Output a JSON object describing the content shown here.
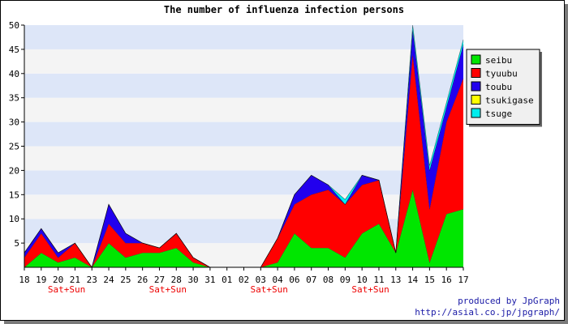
{
  "chart_data": {
    "type": "area",
    "stacked": true,
    "title": "The number of influenza infection persons",
    "xlabel": "",
    "ylabel": "",
    "ylim": [
      0,
      50
    ],
    "yticks": [
      5,
      10,
      15,
      20,
      25,
      30,
      35,
      40,
      45,
      50
    ],
    "grid": true,
    "legend_position": "right",
    "categories": [
      "18",
      "19",
      "20",
      "21",
      "23",
      "24",
      "25",
      "26",
      "27",
      "28",
      "30",
      "31",
      "01",
      "02",
      "03",
      "04",
      "06",
      "07",
      "08",
      "09",
      "10",
      "11",
      "13",
      "14",
      "15",
      "16",
      "17"
    ],
    "weekend_markers": [
      {
        "between": [
          "20",
          "21"
        ],
        "label": "Sat+Sun"
      },
      {
        "between": [
          "27",
          "28"
        ],
        "label": "Sat+Sun"
      },
      {
        "between": [
          "03",
          "04"
        ],
        "label": "Sat+Sun"
      },
      {
        "between": [
          "10",
          "11"
        ],
        "label": "Sat+Sun"
      }
    ],
    "series": [
      {
        "name": "seibu",
        "color": "#00e600",
        "values": [
          0,
          3,
          1,
          2,
          0,
          5,
          2,
          3,
          3,
          4,
          1,
          0,
          0,
          0,
          0,
          1,
          7,
          4,
          4,
          2,
          7,
          9,
          3,
          16,
          1,
          11,
          12
        ]
      },
      {
        "name": "tyuubu",
        "color": "#ff0000",
        "values": [
          2,
          4,
          1,
          3,
          0,
          4,
          3,
          2,
          1,
          3,
          1,
          0,
          0,
          0,
          0,
          5,
          6,
          11,
          12,
          11,
          10,
          9,
          0,
          28,
          11,
          19,
          27
        ]
      },
      {
        "name": "toubu",
        "color": "#2200ee",
        "values": [
          1,
          1,
          1,
          0,
          0,
          4,
          2,
          0,
          0,
          0,
          0,
          0,
          0,
          0,
          0,
          0,
          2,
          4,
          1,
          0,
          2,
          0,
          0,
          5,
          8,
          3,
          7
        ]
      },
      {
        "name": "tsukigase",
        "color": "#ffff00",
        "values": [
          0,
          0,
          0,
          0,
          0,
          0,
          0,
          0,
          0,
          0,
          0,
          0,
          0,
          0,
          0,
          0,
          0,
          0,
          0,
          0,
          0,
          0,
          0,
          0,
          0,
          0,
          0
        ]
      },
      {
        "name": "tsuge",
        "color": "#00eeee",
        "values": [
          0,
          0,
          0,
          0,
          0,
          0,
          0,
          0,
          0,
          0,
          0,
          0,
          0,
          0,
          0,
          0,
          0,
          0,
          0,
          1,
          0,
          0,
          0,
          1,
          1,
          1,
          1
        ]
      }
    ]
  },
  "credits": {
    "line1": "produced by JpGraph",
    "line2": "http://asial.co.jp/jpgraph/"
  },
  "colors": {
    "band_blue": "#dde6f8",
    "band_white": "#f4f4f4",
    "weekend_label": "#ee0000",
    "credit_text": "#1a1aa6"
  }
}
